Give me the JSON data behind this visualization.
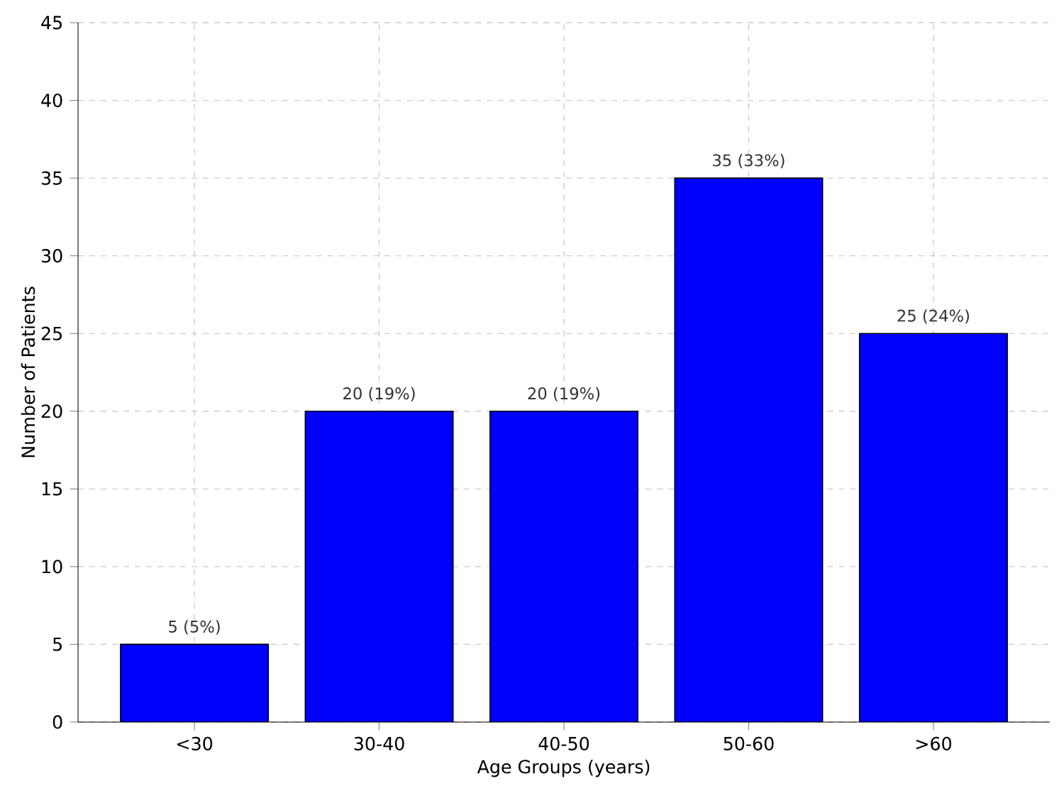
{
  "chart_data": {
    "type": "bar",
    "xlabel": "Age Groups (years)",
    "ylabel": "Number of Patients",
    "categories": [
      "<30",
      "30-40",
      "40-50",
      "50-60",
      ">60"
    ],
    "values": [
      5,
      20,
      20,
      35,
      25
    ],
    "value_labels": [
      "5 (5%)",
      "20 (19%)",
      "20 (19%)",
      "35 (33%)",
      "25 (24%)"
    ],
    "color": "#0000ff",
    "ylim": [
      0,
      45
    ],
    "yticks": [
      0,
      5,
      10,
      15,
      20,
      25,
      30,
      35,
      40,
      45
    ],
    "grid": true
  }
}
